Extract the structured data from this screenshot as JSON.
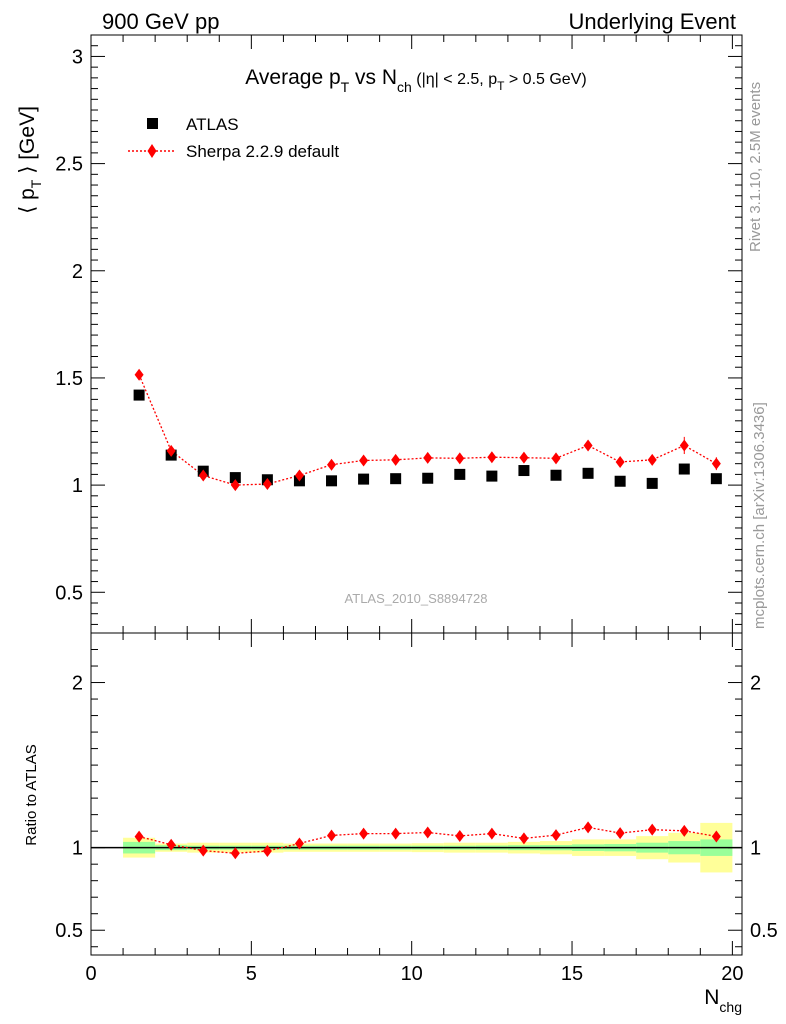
{
  "header": {
    "left": "900 GeV pp",
    "right": "Underlying Event"
  },
  "side_labels": {
    "rivet": "Rivet 3.1.10,  2.5M events",
    "mcplots": "mcplots.cern.ch [arXiv:1306.3436]"
  },
  "chart_data": {
    "type": "scatter",
    "analysis_label": "ATLAS_2010_S8894728",
    "title": {
      "t1": "Average p",
      "t1sub": "T",
      "t2": " vs N",
      "t2sub": "ch",
      "t3": " (|η| < 2.5, p",
      "t3sub": "T",
      "t4": " > 0.5 GeV)"
    },
    "main_panel": {
      "ylabel": {
        "pre": "⟨ p",
        "sub": "T",
        "post": " ⟩ [GeV]"
      },
      "xlim": [
        0,
        20.3
      ],
      "ylim": [
        0.31,
        3.1
      ],
      "yticks": [
        {
          "value": 0.5,
          "label": "0.5"
        },
        {
          "value": 1,
          "label": "1"
        },
        {
          "value": 1.5,
          "label": "1.5"
        },
        {
          "value": 2,
          "label": "2"
        },
        {
          "value": 2.5,
          "label": "2.5"
        },
        {
          "value": 3,
          "label": "3"
        }
      ],
      "series": [
        {
          "name": "ATLAS",
          "marker": "square",
          "color": "#000000",
          "x": [
            1.5,
            2.5,
            3.5,
            4.5,
            5.5,
            6.5,
            7.5,
            8.5,
            9.5,
            10.5,
            11.5,
            12.5,
            13.5,
            14.5,
            15.5,
            16.5,
            17.5,
            18.5,
            19.5
          ],
          "y": [
            1.42,
            1.14,
            1.065,
            1.035,
            1.025,
            1.02,
            1.02,
            1.028,
            1.03,
            1.032,
            1.05,
            1.042,
            1.068,
            1.046,
            1.055,
            1.018,
            1.008,
            1.075,
            1.03
          ]
        },
        {
          "name": "Sherpa 2.2.9 default",
          "marker": "diamond",
          "color": "#ff0000",
          "x": [
            1.5,
            2.5,
            3.5,
            4.5,
            5.5,
            6.5,
            7.5,
            8.5,
            9.5,
            10.5,
            11.5,
            12.5,
            13.5,
            14.5,
            15.5,
            16.5,
            17.5,
            18.5,
            19.5
          ],
          "y": [
            1.515,
            1.16,
            1.045,
            1.0,
            1.005,
            1.045,
            1.095,
            1.115,
            1.118,
            1.127,
            1.125,
            1.13,
            1.128,
            1.125,
            1.185,
            1.108,
            1.118,
            1.185,
            1.1
          ],
          "yerr": [
            0.01,
            0.01,
            0.01,
            0.008,
            0.008,
            0.01,
            0.01,
            0.01,
            0.01,
            0.01,
            0.01,
            0.01,
            0.01,
            0.01,
            0.015,
            0.015,
            0.02,
            0.04,
            0.03
          ]
        }
      ]
    },
    "ratio_panel": {
      "ylabel": "Ratio to ATLAS",
      "ylim": [
        0.35,
        2.3
      ],
      "yticks": [
        {
          "value": 0.5,
          "label": "0.5"
        },
        {
          "value": 1,
          "label": "1"
        },
        {
          "value": 2,
          "label": "2"
        }
      ],
      "xlabel": {
        "main": "N",
        "sub": "chg"
      },
      "xticks": [
        {
          "value": 0,
          "label": "0"
        },
        {
          "value": 5,
          "label": "5"
        },
        {
          "value": 10,
          "label": "10"
        },
        {
          "value": 15,
          "label": "15"
        },
        {
          "value": 20,
          "label": "20"
        }
      ],
      "bands": {
        "bin_edges": [
          1,
          2,
          3,
          4,
          5,
          6,
          7,
          8,
          9,
          10,
          11,
          12,
          13,
          14,
          15,
          16,
          17,
          18,
          19,
          20
        ],
        "inner_half_width": [
          0.035,
          0.015,
          0.012,
          0.012,
          0.012,
          0.012,
          0.012,
          0.012,
          0.012,
          0.012,
          0.012,
          0.013,
          0.015,
          0.016,
          0.02,
          0.022,
          0.03,
          0.04,
          0.05
        ],
        "outer_half_width": [
          0.06,
          0.025,
          0.03,
          0.03,
          0.03,
          0.025,
          0.025,
          0.025,
          0.025,
          0.027,
          0.03,
          0.03,
          0.035,
          0.04,
          0.05,
          0.05,
          0.07,
          0.09,
          0.15
        ],
        "inner_color": "#99ff99",
        "outer_color": "#ffff99"
      },
      "ratio": [
        1.067,
        1.018,
        0.982,
        0.966,
        0.98,
        1.025,
        1.074,
        1.085,
        1.085,
        1.092,
        1.071,
        1.085,
        1.056,
        1.076,
        1.123,
        1.088,
        1.109,
        1.102,
        1.068
      ]
    }
  }
}
